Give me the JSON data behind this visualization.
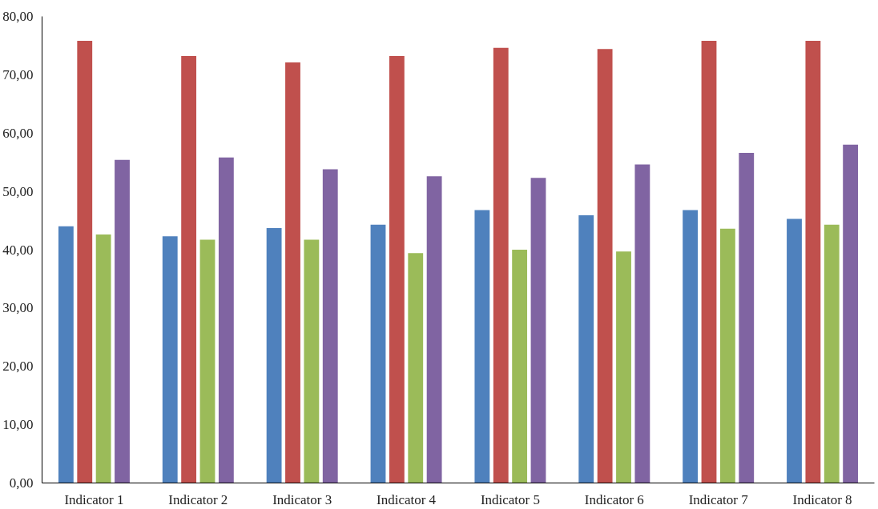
{
  "chart_data": {
    "type": "bar",
    "categories": [
      "Indicator 1",
      "Indicator 2",
      "Indicator 3",
      "Indicator 4",
      "Indicator 5",
      "Indicator 6",
      "Indicator 7",
      "Indicator 8"
    ],
    "series": [
      {
        "color": "#4f81bd",
        "values": [
          44.0,
          42.3,
          43.7,
          44.3,
          46.8,
          45.9,
          46.8,
          45.3
        ]
      },
      {
        "color": "#c0504d",
        "values": [
          75.8,
          73.2,
          72.1,
          73.2,
          74.6,
          74.4,
          75.8,
          75.8
        ]
      },
      {
        "color": "#9bbb59",
        "values": [
          42.6,
          41.7,
          41.7,
          39.4,
          40.0,
          39.7,
          43.6,
          44.3
        ]
      },
      {
        "color": "#8064a2",
        "values": [
          55.4,
          55.8,
          53.8,
          52.6,
          52.3,
          54.6,
          56.6,
          58.0
        ]
      }
    ],
    "ylim": [
      0,
      80
    ],
    "yticks": [
      {
        "value": 0,
        "label": "0,00"
      },
      {
        "value": 10,
        "label": "10,00"
      },
      {
        "value": 20,
        "label": "20,00"
      },
      {
        "value": 30,
        "label": "30,00"
      },
      {
        "value": 40,
        "label": "40,00"
      },
      {
        "value": 50,
        "label": "50,00"
      },
      {
        "value": 60,
        "label": "60,00"
      },
      {
        "value": 70,
        "label": "70,00"
      },
      {
        "value": 80,
        "label": "80,00"
      }
    ],
    "grid": false
  }
}
